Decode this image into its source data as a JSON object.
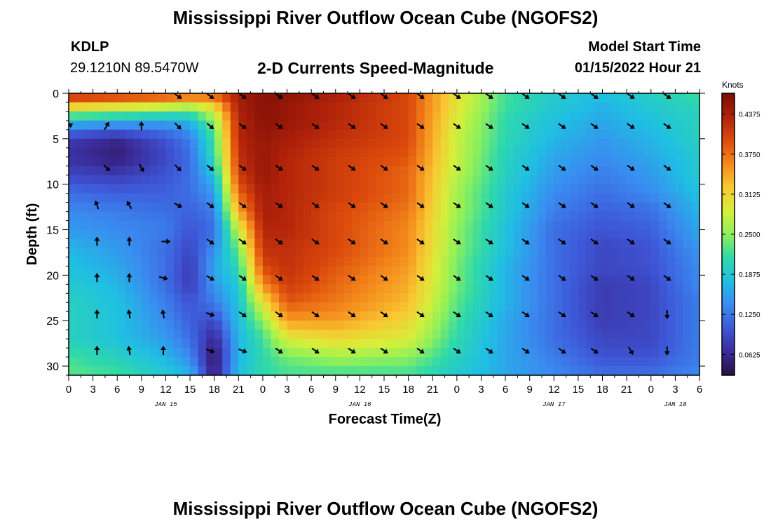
{
  "header": {
    "title": "Mississippi River Outflow Ocean Cube (NGOFS2)",
    "station_id": "KDLP",
    "station_coords": "29.1210N  89.5470W",
    "subtitle": "2-D Currents Speed-Magnitude",
    "model_start_label": "Model Start Time",
    "model_start_value": "01/15/2022 Hour 21",
    "repeated_title": "Mississippi River Outflow Ocean Cube (NGOFS2)"
  },
  "chart_data": {
    "type": "heatmap",
    "title": "2-D Currents Speed-Magnitude",
    "xlabel": "Forecast Time(Z)",
    "ylabel": "Depth (ft)",
    "x_unit": "hours from JAN 15 00Z",
    "xlim": [
      0,
      78
    ],
    "ylim": [
      31,
      0
    ],
    "y_reversed": true,
    "x_tick_labels": [
      "0",
      "3",
      "6",
      "9",
      "12",
      "15",
      "18",
      "21",
      "0",
      "3",
      "6",
      "9",
      "12",
      "15",
      "18",
      "21",
      "0",
      "3",
      "6",
      "9",
      "12",
      "15",
      "18",
      "21",
      "0",
      "3",
      "6"
    ],
    "y_ticks": [
      0,
      5,
      10,
      15,
      20,
      25,
      30
    ],
    "date_labels": [
      {
        "label": "JAN 15",
        "hour": 12
      },
      {
        "label": "JAN 16",
        "hour": 36
      },
      {
        "label": "JAN 17",
        "hour": 60
      },
      {
        "label": "JAN 18",
        "hour": 75
      }
    ],
    "colorbar": {
      "label": "Knots",
      "min": 0.03,
      "max": 0.47,
      "tick_values": [
        0.4375,
        0.375,
        0.3125,
        0.25,
        0.1875,
        0.125,
        0.0625
      ],
      "tick_labels": [
        "0.4375",
        "0.3750",
        "0.3125",
        "0.2500",
        "0.1875",
        "0.1250",
        "0.0625"
      ],
      "colors": [
        "#2a0f3e",
        "#3b2c9a",
        "#3e57d8",
        "#3a8bf0",
        "#1fbfe3",
        "#2fd9a9",
        "#8ef05a",
        "#d6ef3a",
        "#f8c832",
        "#f48a1c",
        "#dc4a0c",
        "#b0220a",
        "#7a0c05"
      ]
    },
    "grid": false,
    "legend": "colorbar at right",
    "depths": [
      0,
      1,
      3,
      5,
      7,
      9,
      11,
      13,
      15,
      17,
      19,
      21,
      23,
      25,
      27,
      29,
      31
    ],
    "hours": [
      0,
      6,
      12,
      15,
      18,
      21,
      24,
      27,
      33,
      42,
      48,
      54,
      60,
      66,
      72,
      78
    ],
    "speed_knots": [
      [
        0.44,
        0.44,
        0.43,
        0.42,
        0.4,
        0.44,
        0.46,
        0.46,
        0.44,
        0.4,
        0.3,
        0.22,
        0.19,
        0.18,
        0.2,
        0.22
      ],
      [
        0.36,
        0.34,
        0.32,
        0.3,
        0.33,
        0.44,
        0.46,
        0.45,
        0.43,
        0.4,
        0.3,
        0.22,
        0.19,
        0.17,
        0.19,
        0.21
      ],
      [
        0.18,
        0.17,
        0.16,
        0.17,
        0.25,
        0.43,
        0.46,
        0.45,
        0.43,
        0.4,
        0.29,
        0.21,
        0.18,
        0.16,
        0.18,
        0.2
      ],
      [
        0.08,
        0.06,
        0.1,
        0.13,
        0.22,
        0.43,
        0.45,
        0.44,
        0.42,
        0.4,
        0.28,
        0.21,
        0.17,
        0.15,
        0.17,
        0.2
      ],
      [
        0.07,
        0.05,
        0.09,
        0.12,
        0.21,
        0.42,
        0.45,
        0.43,
        0.41,
        0.39,
        0.28,
        0.2,
        0.16,
        0.14,
        0.16,
        0.19
      ],
      [
        0.09,
        0.08,
        0.1,
        0.12,
        0.18,
        0.41,
        0.45,
        0.43,
        0.41,
        0.38,
        0.27,
        0.2,
        0.15,
        0.13,
        0.15,
        0.19
      ],
      [
        0.12,
        0.11,
        0.11,
        0.12,
        0.15,
        0.38,
        0.44,
        0.43,
        0.41,
        0.38,
        0.26,
        0.19,
        0.14,
        0.12,
        0.14,
        0.18
      ],
      [
        0.14,
        0.13,
        0.12,
        0.11,
        0.13,
        0.34,
        0.44,
        0.43,
        0.4,
        0.37,
        0.26,
        0.19,
        0.13,
        0.11,
        0.12,
        0.17
      ],
      [
        0.15,
        0.14,
        0.13,
        0.1,
        0.12,
        0.28,
        0.43,
        0.43,
        0.4,
        0.36,
        0.25,
        0.18,
        0.12,
        0.1,
        0.11,
        0.16
      ],
      [
        0.17,
        0.15,
        0.12,
        0.09,
        0.14,
        0.24,
        0.42,
        0.42,
        0.4,
        0.36,
        0.25,
        0.18,
        0.12,
        0.09,
        0.1,
        0.15
      ],
      [
        0.18,
        0.16,
        0.12,
        0.08,
        0.16,
        0.21,
        0.4,
        0.42,
        0.39,
        0.35,
        0.24,
        0.17,
        0.12,
        0.09,
        0.1,
        0.14
      ],
      [
        0.19,
        0.17,
        0.12,
        0.08,
        0.15,
        0.19,
        0.36,
        0.41,
        0.38,
        0.34,
        0.24,
        0.17,
        0.12,
        0.08,
        0.09,
        0.14
      ],
      [
        0.2,
        0.18,
        0.13,
        0.1,
        0.13,
        0.18,
        0.3,
        0.39,
        0.37,
        0.33,
        0.23,
        0.17,
        0.12,
        0.08,
        0.09,
        0.13
      ],
      [
        0.2,
        0.18,
        0.14,
        0.11,
        0.09,
        0.18,
        0.25,
        0.35,
        0.35,
        0.31,
        0.22,
        0.16,
        0.12,
        0.08,
        0.09,
        0.13
      ],
      [
        0.2,
        0.18,
        0.15,
        0.12,
        0.06,
        0.17,
        0.22,
        0.29,
        0.31,
        0.29,
        0.21,
        0.16,
        0.12,
        0.09,
        0.09,
        0.13
      ],
      [
        0.22,
        0.2,
        0.17,
        0.14,
        0.04,
        0.17,
        0.21,
        0.24,
        0.26,
        0.25,
        0.2,
        0.16,
        0.13,
        0.1,
        0.1,
        0.13
      ],
      [
        0.23,
        0.22,
        0.19,
        0.17,
        0.05,
        0.18,
        0.21,
        0.22,
        0.22,
        0.22,
        0.19,
        0.16,
        0.14,
        0.12,
        0.12,
        0.14
      ]
    ],
    "vector_hours": [
      0,
      3,
      6,
      9,
      12,
      15,
      18,
      21,
      24,
      27,
      30,
      33,
      36,
      39,
      42,
      45,
      48,
      51,
      54,
      57,
      60,
      63,
      66,
      69,
      72,
      75,
      78
    ],
    "vectors": [
      {
        "depth": 0.3,
        "hour": 13.5,
        "dir": 35
      },
      {
        "depth": 0.3,
        "hour": 17.5,
        "dir": 35
      },
      {
        "depth": 0.3,
        "hour": 21.5,
        "dir": 35
      },
      {
        "depth": 0.3,
        "hour": 26,
        "dir": 35
      },
      {
        "depth": 0.3,
        "hour": 30.5,
        "dir": 35
      },
      {
        "depth": 0.3,
        "hour": 35,
        "dir": 35
      },
      {
        "depth": 0.3,
        "hour": 39,
        "dir": 35
      },
      {
        "depth": 0.3,
        "hour": 43.5,
        "dir": 35
      },
      {
        "depth": 0.3,
        "hour": 48,
        "dir": 35
      },
      {
        "depth": 0.3,
        "hour": 52,
        "dir": 35
      },
      {
        "depth": 0.3,
        "hour": 56.5,
        "dir": 35
      },
      {
        "depth": 0.3,
        "hour": 61,
        "dir": 35
      },
      {
        "depth": 0.3,
        "hour": 65,
        "dir": 35
      },
      {
        "depth": 0.3,
        "hour": 69.5,
        "dir": 35
      },
      {
        "depth": 0.3,
        "hour": 74,
        "dir": 35
      },
      {
        "depth": 3.6,
        "hour": 0,
        "dir": 330
      },
      {
        "depth": 3.6,
        "hour": 4.7,
        "dir": 300
      },
      {
        "depth": 3.6,
        "hour": 9,
        "dir": 270
      },
      {
        "depth": 3.6,
        "hour": 13.5,
        "dir": 45
      },
      {
        "depth": 3.6,
        "hour": 17.5,
        "dir": 40
      },
      {
        "depth": 3.6,
        "hour": 21.5,
        "dir": 35
      },
      {
        "depth": 3.6,
        "hour": 26,
        "dir": 35
      },
      {
        "depth": 3.6,
        "hour": 30.5,
        "dir": 35
      },
      {
        "depth": 3.6,
        "hour": 35,
        "dir": 35
      },
      {
        "depth": 3.6,
        "hour": 39,
        "dir": 35
      },
      {
        "depth": 3.6,
        "hour": 43.5,
        "dir": 35
      },
      {
        "depth": 3.6,
        "hour": 48,
        "dir": 35
      },
      {
        "depth": 3.6,
        "hour": 52,
        "dir": 35
      },
      {
        "depth": 3.6,
        "hour": 56.5,
        "dir": 35
      },
      {
        "depth": 3.6,
        "hour": 61,
        "dir": 35
      },
      {
        "depth": 3.6,
        "hour": 65,
        "dir": 35
      },
      {
        "depth": 3.6,
        "hour": 69.5,
        "dir": 35
      },
      {
        "depth": 3.6,
        "hour": 74,
        "dir": 35
      },
      {
        "depth": 8.2,
        "hour": 4.7,
        "dir": 45
      },
      {
        "depth": 8.2,
        "hour": 9,
        "dir": 60
      },
      {
        "depth": 8.2,
        "hour": 13.5,
        "dir": 45
      },
      {
        "depth": 8.2,
        "hour": 17.5,
        "dir": 40
      },
      {
        "depth": 8.2,
        "hour": 21.5,
        "dir": 35
      },
      {
        "depth": 8.2,
        "hour": 26,
        "dir": 35
      },
      {
        "depth": 8.2,
        "hour": 30.5,
        "dir": 35
      },
      {
        "depth": 8.2,
        "hour": 35,
        "dir": 35
      },
      {
        "depth": 8.2,
        "hour": 39,
        "dir": 35
      },
      {
        "depth": 8.2,
        "hour": 43.5,
        "dir": 35
      },
      {
        "depth": 8.2,
        "hour": 48,
        "dir": 35
      },
      {
        "depth": 8.2,
        "hour": 52,
        "dir": 35
      },
      {
        "depth": 8.2,
        "hour": 56.5,
        "dir": 35
      },
      {
        "depth": 8.2,
        "hour": 61,
        "dir": 35
      },
      {
        "depth": 8.2,
        "hour": 65,
        "dir": 35
      },
      {
        "depth": 8.2,
        "hour": 69.5,
        "dir": 35
      },
      {
        "depth": 8.2,
        "hour": 74,
        "dir": 35
      },
      {
        "depth": 12.3,
        "hour": 3.5,
        "dir": 250
      },
      {
        "depth": 12.3,
        "hour": 7.5,
        "dir": 240
      },
      {
        "depth": 12.3,
        "hour": 13.5,
        "dir": 30
      },
      {
        "depth": 12.3,
        "hour": 17.5,
        "dir": 35
      },
      {
        "depth": 12.3,
        "hour": 21.5,
        "dir": 35
      },
      {
        "depth": 12.3,
        "hour": 26,
        "dir": 35
      },
      {
        "depth": 12.3,
        "hour": 30.5,
        "dir": 35
      },
      {
        "depth": 12.3,
        "hour": 35,
        "dir": 35
      },
      {
        "depth": 12.3,
        "hour": 39,
        "dir": 35
      },
      {
        "depth": 12.3,
        "hour": 43.5,
        "dir": 35
      },
      {
        "depth": 12.3,
        "hour": 48,
        "dir": 35
      },
      {
        "depth": 12.3,
        "hour": 52,
        "dir": 35
      },
      {
        "depth": 12.3,
        "hour": 56.5,
        "dir": 35
      },
      {
        "depth": 12.3,
        "hour": 61,
        "dir": 35
      },
      {
        "depth": 12.3,
        "hour": 65,
        "dir": 35
      },
      {
        "depth": 12.3,
        "hour": 69.5,
        "dir": 35
      },
      {
        "depth": 12.3,
        "hour": 74,
        "dir": 35
      },
      {
        "depth": 16.3,
        "hour": 3.5,
        "dir": 270
      },
      {
        "depth": 16.3,
        "hour": 7.5,
        "dir": 270
      },
      {
        "depth": 16.3,
        "hour": 12,
        "dir": 0
      },
      {
        "depth": 16.3,
        "hour": 17.5,
        "dir": 35
      },
      {
        "depth": 16.3,
        "hour": 21.5,
        "dir": 35
      },
      {
        "depth": 16.3,
        "hour": 26,
        "dir": 35
      },
      {
        "depth": 16.3,
        "hour": 30.5,
        "dir": 35
      },
      {
        "depth": 16.3,
        "hour": 35,
        "dir": 35
      },
      {
        "depth": 16.3,
        "hour": 39,
        "dir": 35
      },
      {
        "depth": 16.3,
        "hour": 43.5,
        "dir": 35
      },
      {
        "depth": 16.3,
        "hour": 48,
        "dir": 35
      },
      {
        "depth": 16.3,
        "hour": 52,
        "dir": 35
      },
      {
        "depth": 16.3,
        "hour": 56.5,
        "dir": 35
      },
      {
        "depth": 16.3,
        "hour": 61,
        "dir": 35
      },
      {
        "depth": 16.3,
        "hour": 65,
        "dir": 35
      },
      {
        "depth": 16.3,
        "hour": 69.5,
        "dir": 35
      },
      {
        "depth": 16.3,
        "hour": 74,
        "dir": 35
      },
      {
        "depth": 20.3,
        "hour": 3.5,
        "dir": 270
      },
      {
        "depth": 20.3,
        "hour": 7.5,
        "dir": 270
      },
      {
        "depth": 20.3,
        "hour": 11.7,
        "dir": 15
      },
      {
        "depth": 20.3,
        "hour": 17.5,
        "dir": 30
      },
      {
        "depth": 20.3,
        "hour": 21.5,
        "dir": 35
      },
      {
        "depth": 20.3,
        "hour": 26,
        "dir": 35
      },
      {
        "depth": 20.3,
        "hour": 30.5,
        "dir": 35
      },
      {
        "depth": 20.3,
        "hour": 35,
        "dir": 35
      },
      {
        "depth": 20.3,
        "hour": 39,
        "dir": 35
      },
      {
        "depth": 20.3,
        "hour": 43.5,
        "dir": 35
      },
      {
        "depth": 20.3,
        "hour": 48,
        "dir": 35
      },
      {
        "depth": 20.3,
        "hour": 52,
        "dir": 35
      },
      {
        "depth": 20.3,
        "hour": 56.5,
        "dir": 35
      },
      {
        "depth": 20.3,
        "hour": 61,
        "dir": 35
      },
      {
        "depth": 20.3,
        "hour": 65,
        "dir": 35
      },
      {
        "depth": 20.3,
        "hour": 69.5,
        "dir": 35
      },
      {
        "depth": 20.3,
        "hour": 74,
        "dir": 35
      },
      {
        "depth": 24.3,
        "hour": 3.5,
        "dir": 270
      },
      {
        "depth": 24.3,
        "hour": 7.5,
        "dir": 260
      },
      {
        "depth": 24.3,
        "hour": 11.7,
        "dir": 260
      },
      {
        "depth": 24.3,
        "hour": 17.5,
        "dir": 20
      },
      {
        "depth": 24.3,
        "hour": 21.5,
        "dir": 35
      },
      {
        "depth": 24.3,
        "hour": 26,
        "dir": 35
      },
      {
        "depth": 24.3,
        "hour": 30.5,
        "dir": 35
      },
      {
        "depth": 24.3,
        "hour": 35,
        "dir": 35
      },
      {
        "depth": 24.3,
        "hour": 39,
        "dir": 35
      },
      {
        "depth": 24.3,
        "hour": 43.5,
        "dir": 35
      },
      {
        "depth": 24.3,
        "hour": 48,
        "dir": 35
      },
      {
        "depth": 24.3,
        "hour": 52,
        "dir": 35
      },
      {
        "depth": 24.3,
        "hour": 56.5,
        "dir": 35
      },
      {
        "depth": 24.3,
        "hour": 61,
        "dir": 35
      },
      {
        "depth": 24.3,
        "hour": 65,
        "dir": 35
      },
      {
        "depth": 24.3,
        "hour": 69.5,
        "dir": 35
      },
      {
        "depth": 24.3,
        "hour": 74,
        "dir": 90
      },
      {
        "depth": 28.3,
        "hour": 3.5,
        "dir": 270
      },
      {
        "depth": 28.3,
        "hour": 7.5,
        "dir": 260
      },
      {
        "depth": 28.3,
        "hour": 11.7,
        "dir": 270
      },
      {
        "depth": 28.3,
        "hour": 17.5,
        "dir": 20
      },
      {
        "depth": 28.3,
        "hour": 21.5,
        "dir": 20
      },
      {
        "depth": 28.3,
        "hour": 26,
        "dir": 35
      },
      {
        "depth": 28.3,
        "hour": 30.5,
        "dir": 35
      },
      {
        "depth": 28.3,
        "hour": 35,
        "dir": 35
      },
      {
        "depth": 28.3,
        "hour": 39,
        "dir": 35
      },
      {
        "depth": 28.3,
        "hour": 43.5,
        "dir": 35
      },
      {
        "depth": 28.3,
        "hour": 48,
        "dir": 35
      },
      {
        "depth": 28.3,
        "hour": 52,
        "dir": 35
      },
      {
        "depth": 28.3,
        "hour": 56.5,
        "dir": 35
      },
      {
        "depth": 28.3,
        "hour": 61,
        "dir": 35
      },
      {
        "depth": 28.3,
        "hour": 65,
        "dir": 35
      },
      {
        "depth": 28.3,
        "hour": 69.5,
        "dir": 60
      },
      {
        "depth": 28.3,
        "hour": 74,
        "dir": 90
      }
    ]
  }
}
